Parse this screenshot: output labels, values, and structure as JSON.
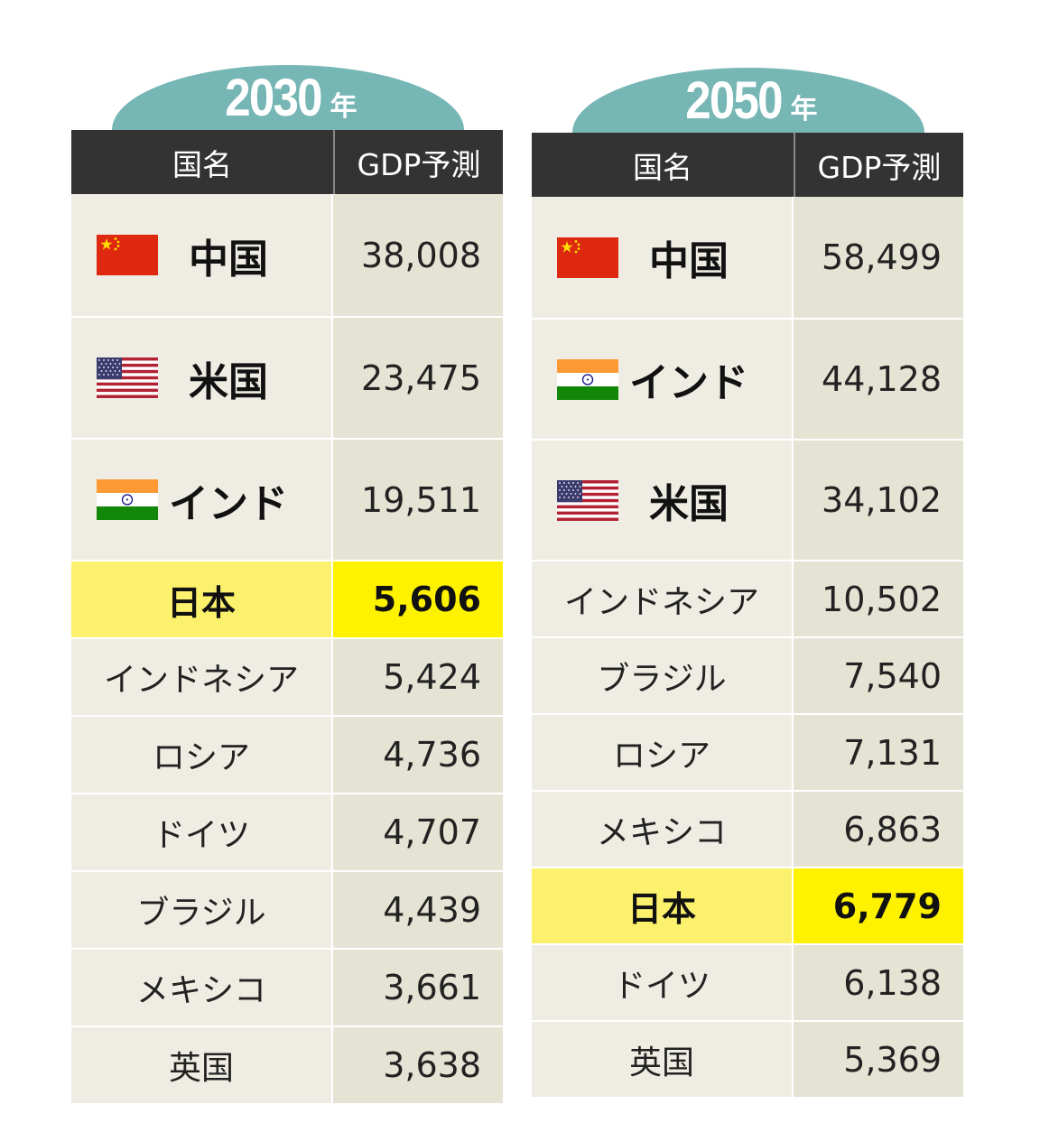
{
  "tables": [
    {
      "year": "2030",
      "year_suffix": "年",
      "col_name": "国名",
      "col_gdp": "GDP予測",
      "rows": [
        {
          "name": "中国",
          "gdp": "38,008",
          "flag": "china-flag-icon"
        },
        {
          "name": "米国",
          "gdp": "23,475",
          "flag": "usa-flag-icon"
        },
        {
          "name": "インド",
          "gdp": "19,511",
          "flag": "india-flag-icon"
        },
        {
          "name": "日本",
          "gdp": "5,606",
          "highlight": true
        },
        {
          "name": "インドネシア",
          "gdp": "5,424"
        },
        {
          "name": "ロシア",
          "gdp": "4,736"
        },
        {
          "name": "ドイツ",
          "gdp": "4,707"
        },
        {
          "name": "ブラジル",
          "gdp": "4,439"
        },
        {
          "name": "メキシコ",
          "gdp": "3,661"
        },
        {
          "name": "英国",
          "gdp": "3,638"
        }
      ]
    },
    {
      "year": "2050",
      "year_suffix": "年",
      "col_name": "国名",
      "col_gdp": "GDP予測",
      "rows": [
        {
          "name": "中国",
          "gdp": "58,499",
          "flag": "china-flag-icon"
        },
        {
          "name": "インド",
          "gdp": "44,128",
          "flag": "india-flag-icon"
        },
        {
          "name": "米国",
          "gdp": "34,102",
          "flag": "usa-flag-icon"
        },
        {
          "name": "インドネシア",
          "gdp": "10,502"
        },
        {
          "name": "ブラジル",
          "gdp": "7,540"
        },
        {
          "name": "ロシア",
          "gdp": "7,131"
        },
        {
          "name": "メキシコ",
          "gdp": "6,863"
        },
        {
          "name": "日本",
          "gdp": "6,779",
          "highlight": true
        },
        {
          "name": "ドイツ",
          "gdp": "6,138"
        },
        {
          "name": "英国",
          "gdp": "5,369"
        }
      ]
    }
  ],
  "colors": {
    "dome": "#76b6b4",
    "header": "#333333",
    "name_cell": "#efede3",
    "value_cell": "#e5e3d4",
    "highlight_name": "#fbf16c",
    "highlight_value": "#fff200"
  }
}
